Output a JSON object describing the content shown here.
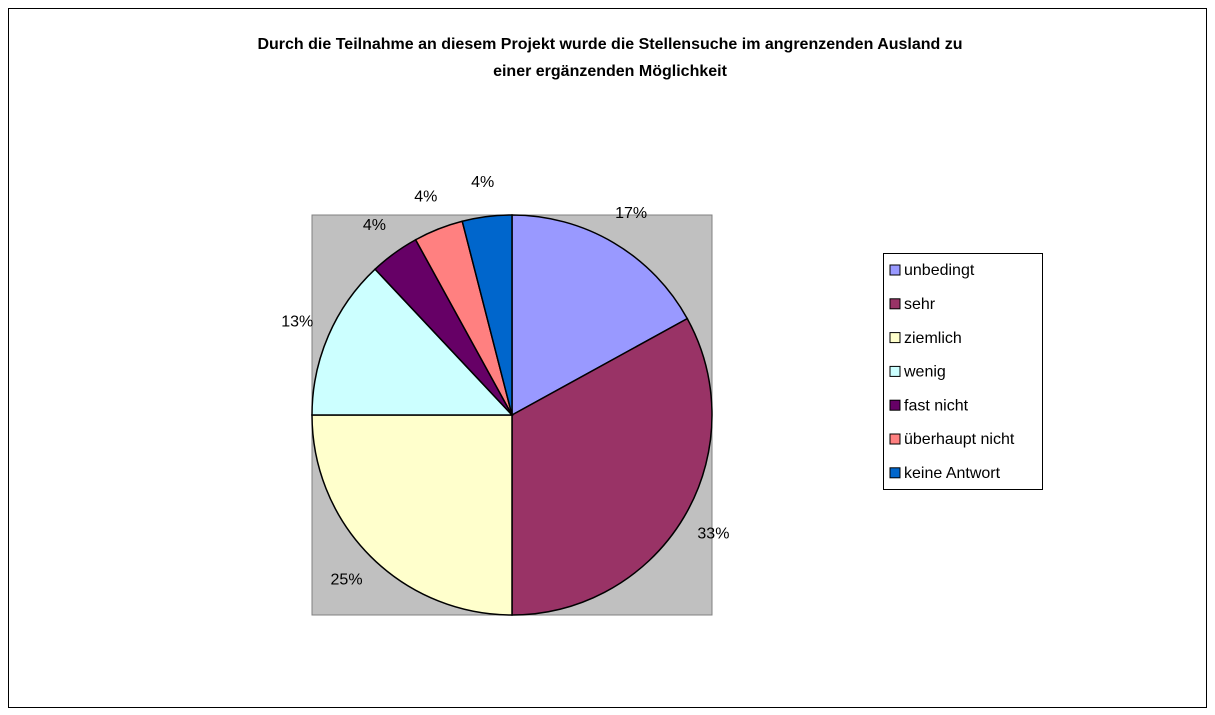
{
  "chart_data": {
    "type": "pie",
    "title": [
      "Durch die Teilnahme an diesem Projekt wurde die Stellensuche im angrenzenden Ausland zu",
      "einer ergänzenden Möglichkeit"
    ],
    "categories": [
      "unbedingt",
      "sehr",
      "ziemlich",
      "wenig",
      "fast nicht",
      "überhaupt nicht",
      "keine Antwort"
    ],
    "values": [
      17,
      33,
      25,
      13,
      4,
      4,
      4
    ],
    "value_labels": [
      "17%",
      "33%",
      "25%",
      "13%",
      "4%",
      "4%",
      "4%"
    ],
    "colors": [
      "#9999ff",
      "#993366",
      "#ffffcc",
      "#ccffff",
      "#660066",
      "#ff8080",
      "#0066cc"
    ],
    "legend": "right"
  }
}
